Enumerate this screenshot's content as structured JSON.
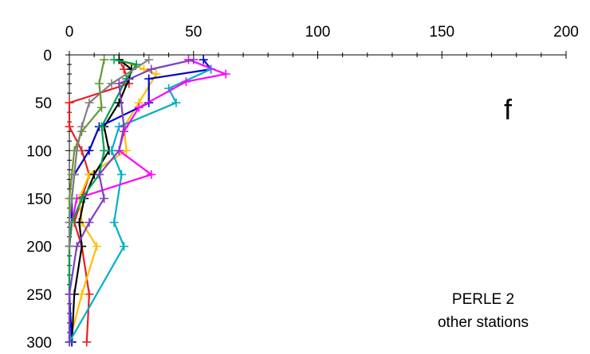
{
  "chart_data": {
    "type": "line",
    "orientation": "depth-profile",
    "title": "",
    "xlabel": "",
    "ylabel": "",
    "xlim": [
      0,
      200
    ],
    "ylim": [
      0,
      300
    ],
    "y_inverted": true,
    "x_axis_position": "top",
    "x_ticks": [
      0,
      50,
      100,
      150,
      200
    ],
    "y_ticks": [
      0,
      50,
      100,
      150,
      200,
      250,
      300
    ],
    "grid": false,
    "legend": "none",
    "annotation_letter": "f",
    "annotation_lines": [
      "PERLE 2",
      "other stations"
    ],
    "series": [
      {
        "color": "#e8201e",
        "points": [
          [
            20,
            5
          ],
          [
            22,
            15
          ],
          [
            24,
            30
          ],
          [
            0,
            50
          ],
          [
            0,
            75
          ],
          [
            5,
            100
          ],
          [
            8,
            125
          ],
          [
            5,
            150
          ],
          [
            2,
            175
          ],
          [
            5,
            200
          ],
          [
            8,
            250
          ],
          [
            7,
            300
          ]
        ]
      },
      {
        "color": "#ffc000",
        "points": [
          [
            20,
            5
          ],
          [
            30,
            15
          ],
          [
            35,
            20
          ],
          [
            28,
            50
          ],
          [
            22,
            75
          ],
          [
            23,
            100
          ],
          [
            8,
            125
          ],
          [
            4,
            150
          ],
          [
            5,
            175
          ],
          [
            11,
            200
          ],
          [
            5,
            250
          ],
          [
            0,
            300
          ]
        ]
      },
      {
        "color": "#000000",
        "points": [
          [
            20,
            5
          ],
          [
            25,
            15
          ],
          [
            24,
            25
          ],
          [
            20,
            50
          ],
          [
            14,
            75
          ],
          [
            16,
            100
          ],
          [
            10,
            125
          ],
          [
            6,
            150
          ],
          [
            4,
            175
          ],
          [
            5,
            200
          ],
          [
            2,
            250
          ],
          [
            1,
            300
          ]
        ]
      },
      {
        "color": "#0000cc",
        "points": [
          [
            54,
            5
          ],
          [
            57,
            15
          ],
          [
            32,
            25
          ],
          [
            32,
            50
          ],
          [
            12,
            75
          ],
          [
            8,
            100
          ],
          [
            2,
            125
          ],
          [
            1,
            150
          ],
          [
            1,
            175
          ],
          [
            0,
            200
          ],
          [
            0,
            250
          ],
          [
            1,
            300
          ]
        ]
      },
      {
        "color": "#00b0c8",
        "points": [
          [
            57,
            15
          ],
          [
            40,
            35
          ],
          [
            43,
            50
          ],
          [
            20,
            75
          ],
          [
            17,
            100
          ],
          [
            21,
            125
          ],
          [
            18,
            175
          ],
          [
            22,
            200
          ],
          [
            0,
            300
          ]
        ]
      },
      {
        "color": "#ff00ff",
        "points": [
          [
            48,
            5
          ],
          [
            63,
            20
          ],
          [
            47,
            28
          ],
          [
            28,
            55
          ],
          [
            22,
            80
          ],
          [
            20,
            100
          ],
          [
            33,
            125
          ],
          [
            3,
            150
          ],
          [
            1,
            175
          ],
          [
            0,
            200
          ]
        ]
      },
      {
        "color": "#00a050",
        "points": [
          [
            18,
            5
          ],
          [
            27,
            10
          ],
          [
            23,
            25
          ],
          [
            13,
            75
          ],
          [
            14,
            100
          ],
          [
            12,
            125
          ],
          [
            5,
            150
          ],
          [
            1,
            175
          ],
          [
            0,
            200
          ],
          [
            0,
            300
          ]
        ]
      },
      {
        "color": "#8040c0",
        "points": [
          [
            50,
            5
          ],
          [
            33,
            15
          ],
          [
            20,
            30
          ],
          [
            22,
            75
          ],
          [
            20,
            100
          ],
          [
            12,
            125
          ],
          [
            14,
            150
          ],
          [
            8,
            175
          ],
          [
            3,
            200
          ],
          [
            0,
            250
          ],
          [
            0,
            300
          ]
        ]
      },
      {
        "color": "#669933",
        "points": [
          [
            14,
            5
          ],
          [
            12,
            30
          ],
          [
            13,
            55
          ],
          [
            5,
            80
          ],
          [
            2,
            100
          ],
          [
            1,
            125
          ],
          [
            0,
            150
          ],
          [
            0,
            175
          ],
          [
            0,
            200
          ]
        ]
      },
      {
        "color": "#808080",
        "points": [
          [
            32,
            5
          ],
          [
            17,
            30
          ],
          [
            8,
            50
          ],
          [
            5,
            75
          ],
          [
            3,
            100
          ],
          [
            2,
            125
          ],
          [
            1,
            150
          ],
          [
            0,
            175
          ],
          [
            0,
            200
          ]
        ]
      }
    ]
  }
}
